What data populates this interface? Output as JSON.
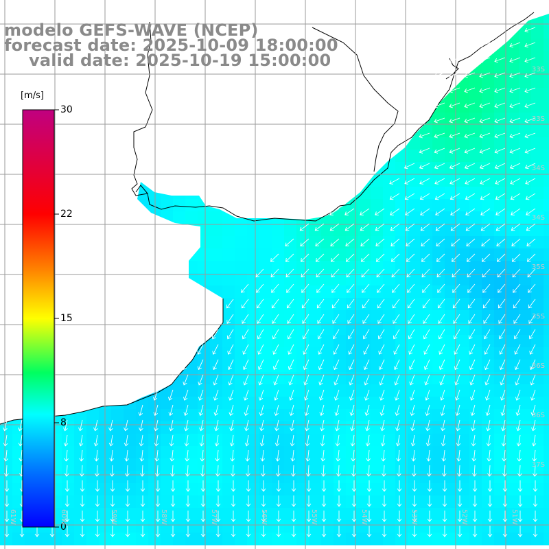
{
  "title": {
    "line1": "modelo GEFS-WAVE (NCEP)",
    "line2": "forecast date: 2025-10-09 18:00:00",
    "line3": "valid date: 2025-10-19 15:00:00"
  },
  "colorbar": {
    "unit": "[m/s]",
    "ticks": [
      "30",
      "22",
      "15",
      "8",
      "0"
    ],
    "tick_values": [
      30,
      22,
      15,
      8,
      0
    ],
    "min": 0,
    "max": 30
  },
  "map": {
    "variable": "wind speed and direction",
    "land_color": "#ffffff",
    "grid_color": "#9a9a9a",
    "arrow_color": "#ffffff",
    "lat_labels": [
      "33S",
      "33S",
      "34S",
      "34S",
      "35S",
      "35S",
      "36S",
      "36S",
      "37S",
      "38S",
      "38S"
    ],
    "lon_labels": [
      "61W",
      "60W",
      "59W",
      "58W",
      "57W",
      "56W",
      "55W",
      "54W",
      "53W",
      "52W",
      "51W"
    ],
    "wind_speed_range_ms": [
      7,
      11
    ],
    "wind_direction_north": "from east-northeast",
    "wind_direction_south": "from north"
  }
}
